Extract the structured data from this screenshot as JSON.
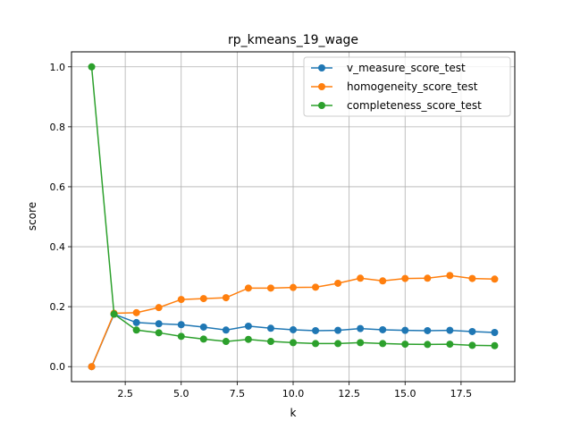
{
  "chart_data": {
    "type": "line",
    "title": "rp_kmeans_19_wage",
    "xlabel": "k",
    "ylabel": "score",
    "xlim": [
      0.1,
      19.9
    ],
    "ylim": [
      -0.05,
      1.05
    ],
    "x_ticks": [
      2.5,
      5.0,
      7.5,
      10.0,
      12.5,
      15.0,
      17.5
    ],
    "x_tick_labels": [
      "2.5",
      "5.0",
      "7.5",
      "10.0",
      "12.5",
      "15.0",
      "17.5"
    ],
    "y_ticks": [
      0.0,
      0.2,
      0.4,
      0.6,
      0.8,
      1.0
    ],
    "y_tick_labels": [
      "0.0",
      "0.2",
      "0.4",
      "0.6",
      "0.8",
      "1.0"
    ],
    "grid": true,
    "legend_position": "top-right",
    "x": [
      1,
      2,
      3,
      4,
      5,
      6,
      7,
      8,
      9,
      10,
      11,
      12,
      13,
      14,
      15,
      16,
      17,
      18,
      19
    ],
    "series": [
      {
        "name": "v_measure_score_test",
        "color": "#1f77b4",
        "values": [
          0.0,
          0.175,
          0.147,
          0.143,
          0.14,
          0.132,
          0.122,
          0.135,
          0.128,
          0.123,
          0.12,
          0.121,
          0.127,
          0.123,
          0.121,
          0.12,
          0.121,
          0.117,
          0.114
        ]
      },
      {
        "name": "homogeneity_score_test",
        "color": "#ff7f0e",
        "values": [
          0.0,
          0.178,
          0.18,
          0.197,
          0.224,
          0.227,
          0.23,
          0.262,
          0.262,
          0.264,
          0.265,
          0.278,
          0.295,
          0.286,
          0.294,
          0.295,
          0.304,
          0.294,
          0.292
        ]
      },
      {
        "name": "completeness_score_test",
        "color": "#2ca02c",
        "values": [
          1.0,
          0.175,
          0.122,
          0.113,
          0.101,
          0.092,
          0.084,
          0.091,
          0.084,
          0.08,
          0.077,
          0.077,
          0.08,
          0.077,
          0.075,
          0.074,
          0.075,
          0.071,
          0.07
        ]
      }
    ]
  }
}
